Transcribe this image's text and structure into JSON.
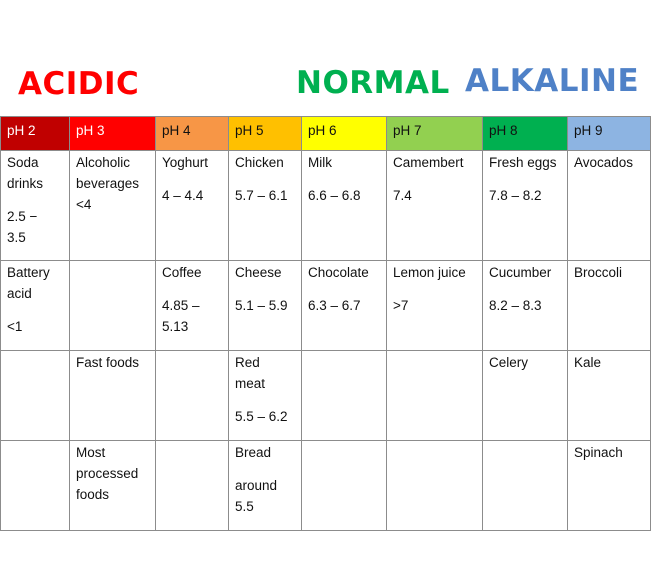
{
  "headings": {
    "acidic": "ACIDIC",
    "normal": "NORMAL",
    "alkaline": "ALKALINE"
  },
  "heading_colors": {
    "acidic": "#ff0000",
    "normal": "#00b050",
    "alkaline": "#4f81c7"
  },
  "columns": [
    {
      "label": "pH 2",
      "color": "#c00000",
      "text_color": "#ffffff"
    },
    {
      "label": "pH 3",
      "color": "#ff0000",
      "text_color": "#ffffff"
    },
    {
      "label": "pH 4",
      "color": "#f79646",
      "text_color": "#111111"
    },
    {
      "label": "pH 5",
      "color": "#ffc000",
      "text_color": "#111111"
    },
    {
      "label": "pH 6",
      "color": "#ffff00",
      "text_color": "#111111"
    },
    {
      "label": "pH 7",
      "color": "#92d050",
      "text_color": "#111111"
    },
    {
      "label": "pH 8",
      "color": "#00b050",
      "text_color": "#111111"
    },
    {
      "label": "pH 9",
      "color": "#8db4e2",
      "text_color": "#111111"
    }
  ],
  "rows": [
    [
      {
        "name": [
          "Soda",
          "drinks"
        ],
        "value": [
          "2.5 −",
          "3.5"
        ]
      },
      {
        "name": [
          "Alcoholic",
          "beverages",
          "<4"
        ],
        "value": []
      },
      {
        "name": [
          "Yoghurt"
        ],
        "value": [
          "4 – 4.4"
        ]
      },
      {
        "name": [
          "Chicken"
        ],
        "value": [
          "5.7 – 6.1"
        ]
      },
      {
        "name": [
          "Milk"
        ],
        "value": [
          "6.6 – 6.8"
        ]
      },
      {
        "name": [
          "Camembert"
        ],
        "value": [
          "7.4"
        ]
      },
      {
        "name": [
          "Fresh eggs"
        ],
        "value": [
          "7.8 – 8.2"
        ]
      },
      {
        "name": [
          "Avocados"
        ],
        "value": []
      }
    ],
    [
      {
        "name": [
          "Battery",
          "acid"
        ],
        "value": [
          "<1"
        ]
      },
      {
        "name": [],
        "value": []
      },
      {
        "name": [
          "Coffee"
        ],
        "value": [
          "4.85 –",
          "5.13"
        ]
      },
      {
        "name": [
          "Cheese"
        ],
        "value": [
          "5.1 – 5.9"
        ]
      },
      {
        "name": [
          "Chocolate"
        ],
        "value": [
          "6.3 – 6.7"
        ]
      },
      {
        "name": [
          "Lemon juice"
        ],
        "value": [
          ">7"
        ]
      },
      {
        "name": [
          "Cucumber"
        ],
        "value": [
          "8.2 – 8.3"
        ]
      },
      {
        "name": [
          "Broccoli"
        ],
        "value": []
      }
    ],
    [
      {
        "name": [],
        "value": []
      },
      {
        "name": [
          "Fast foods"
        ],
        "value": []
      },
      {
        "name": [],
        "value": []
      },
      {
        "name": [
          "Red",
          "meat"
        ],
        "value": [
          "5.5 – 6.2"
        ]
      },
      {
        "name": [],
        "value": []
      },
      {
        "name": [],
        "value": []
      },
      {
        "name": [
          "Celery"
        ],
        "value": []
      },
      {
        "name": [
          "Kale"
        ],
        "value": []
      }
    ],
    [
      {
        "name": [],
        "value": []
      },
      {
        "name": [
          "Most",
          "processed",
          "foods"
        ],
        "value": []
      },
      {
        "name": [],
        "value": []
      },
      {
        "name": [
          "Bread"
        ],
        "value": [
          "around",
          "5.5"
        ]
      },
      {
        "name": [],
        "value": []
      },
      {
        "name": [],
        "value": []
      },
      {
        "name": [],
        "value": []
      },
      {
        "name": [
          "Spinach"
        ],
        "value": []
      }
    ]
  ]
}
